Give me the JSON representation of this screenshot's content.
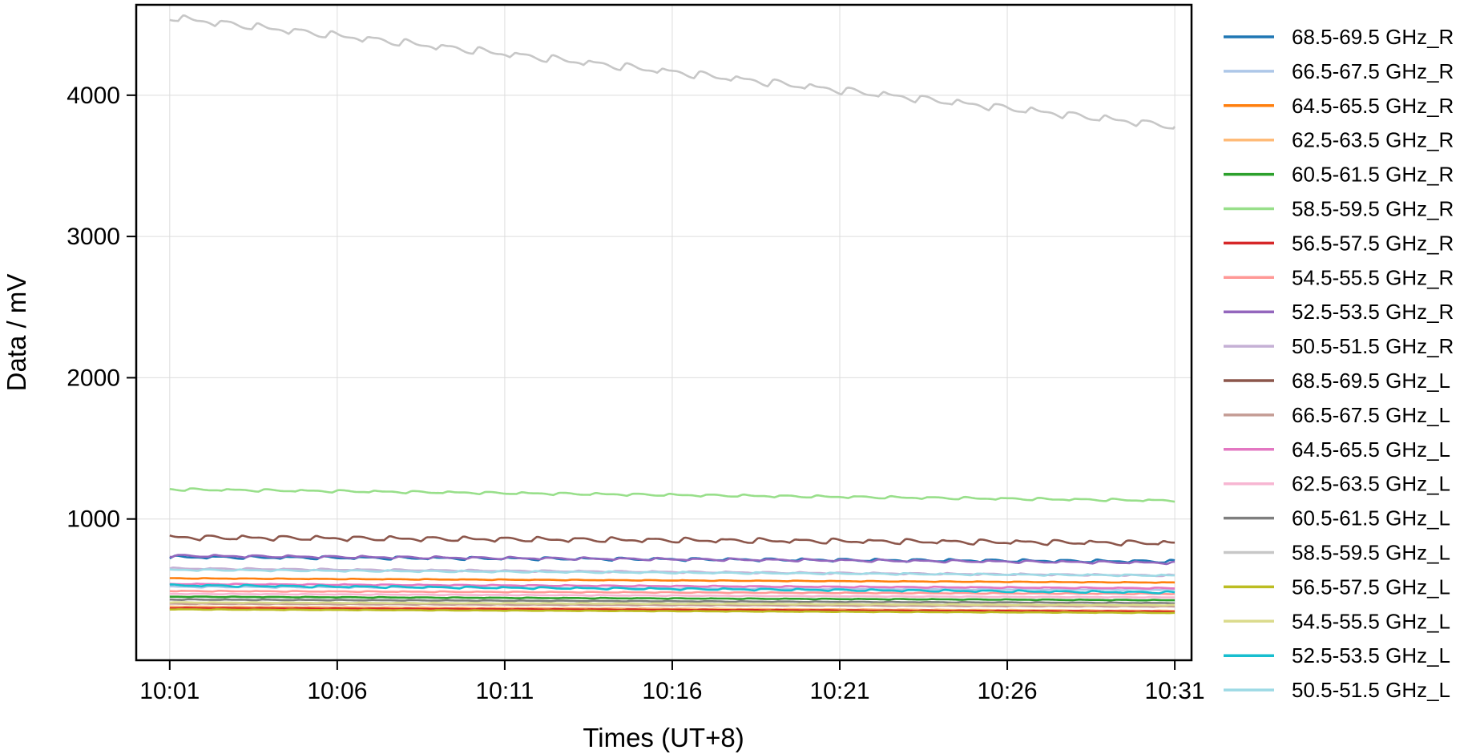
{
  "chart_data": {
    "type": "line",
    "title": "",
    "xlabel": "Times (UT+8)",
    "ylabel": "Data / mV",
    "x_ticks": [
      "10:01",
      "10:06",
      "10:11",
      "10:16",
      "10:21",
      "10:26",
      "10:31"
    ],
    "x_tick_minutes": [
      1,
      6,
      11,
      16,
      21,
      26,
      31
    ],
    "x_range_minutes": [
      0,
      31.5
    ],
    "x_data_start_minutes": 1.0,
    "x_data_end_minutes": 31.0,
    "ylim": [
      0,
      4640
    ],
    "y_ticks": [
      1000,
      2000,
      3000,
      4000
    ],
    "grid": true,
    "legend_position": "outside-right",
    "sawtooth_period_minutes": 1.1,
    "series": [
      {
        "name": "68.5-69.5 GHz_R",
        "color": "#1f77b4",
        "start": 730,
        "end": 700,
        "ripple": 18
      },
      {
        "name": "66.5-67.5 GHz_R",
        "color": "#aec7e8",
        "start": 520,
        "end": 500,
        "ripple": 8
      },
      {
        "name": "64.5-65.5 GHz_R",
        "color": "#ff7f0e",
        "start": 580,
        "end": 550,
        "ripple": 4
      },
      {
        "name": "62.5-63.5 GHz_R",
        "color": "#ffbb78",
        "start": 380,
        "end": 350,
        "ripple": 3
      },
      {
        "name": "60.5-61.5 GHz_R",
        "color": "#2ca02c",
        "start": 450,
        "end": 425,
        "ripple": 4
      },
      {
        "name": "58.5-59.5 GHz_R",
        "color": "#98df8a",
        "start": 1210,
        "end": 1130,
        "ripple": 15
      },
      {
        "name": "56.5-57.5 GHz_R",
        "color": "#d62728",
        "start": 370,
        "end": 345,
        "ripple": 3
      },
      {
        "name": "54.5-55.5 GHz_R",
        "color": "#ff9896",
        "start": 490,
        "end": 470,
        "ripple": 5
      },
      {
        "name": "52.5-53.5 GHz_R",
        "color": "#9467bd",
        "start": 740,
        "end": 690,
        "ripple": 15
      },
      {
        "name": "50.5-51.5 GHz_R",
        "color": "#c5b0d5",
        "start": 650,
        "end": 600,
        "ripple": 10
      },
      {
        "name": "68.5-69.5 GHz_L",
        "color": "#8c564b",
        "start": 870,
        "end": 830,
        "ripple": 30
      },
      {
        "name": "66.5-67.5 GHz_L",
        "color": "#c49c94",
        "start": 400,
        "end": 380,
        "ripple": 4
      },
      {
        "name": "64.5-65.5 GHz_L",
        "color": "#e377c2",
        "start": 540,
        "end": 510,
        "ripple": 6
      },
      {
        "name": "62.5-63.5 GHz_L",
        "color": "#f7b6d2",
        "start": 470,
        "end": 445,
        "ripple": 4
      },
      {
        "name": "60.5-61.5 GHz_L",
        "color": "#7f7f7f",
        "start": 430,
        "end": 405,
        "ripple": 4
      },
      {
        "name": "58.5-59.5 GHz_L",
        "color": "#c7c7c7",
        "start": 4550,
        "end": 3780,
        "ripple": 45
      },
      {
        "name": "56.5-57.5 GHz_L",
        "color": "#bcbd22",
        "start": 360,
        "end": 335,
        "ripple": 3
      },
      {
        "name": "54.5-55.5 GHz_L",
        "color": "#dbdb8d",
        "start": 410,
        "end": 390,
        "ripple": 4
      },
      {
        "name": "52.5-53.5 GHz_L",
        "color": "#17becf",
        "start": 530,
        "end": 480,
        "ripple": 12
      },
      {
        "name": "50.5-51.5 GHz_L",
        "color": "#9edae5",
        "start": 640,
        "end": 600,
        "ripple": 10
      }
    ]
  }
}
